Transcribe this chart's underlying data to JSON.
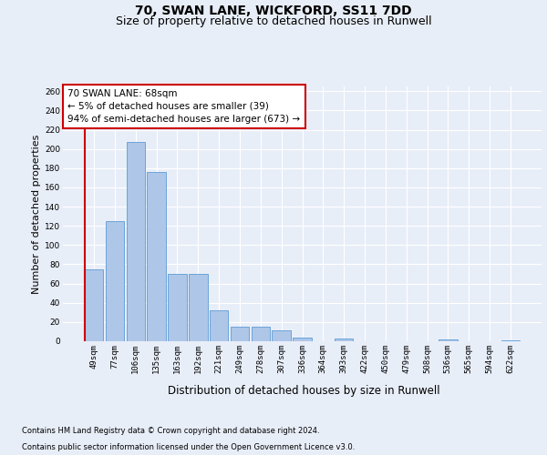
{
  "title1": "70, SWAN LANE, WICKFORD, SS11 7DD",
  "title2": "Size of property relative to detached houses in Runwell",
  "xlabel": "Distribution of detached houses by size in Runwell",
  "ylabel": "Number of detached properties",
  "categories": [
    "49sqm",
    "77sqm",
    "106sqm",
    "135sqm",
    "163sqm",
    "192sqm",
    "221sqm",
    "249sqm",
    "278sqm",
    "307sqm",
    "336sqm",
    "364sqm",
    "393sqm",
    "422sqm",
    "450sqm",
    "479sqm",
    "508sqm",
    "536sqm",
    "565sqm",
    "594sqm",
    "622sqm"
  ],
  "values": [
    75,
    125,
    207,
    176,
    70,
    70,
    32,
    15,
    15,
    11,
    4,
    0,
    3,
    0,
    0,
    0,
    0,
    2,
    0,
    0,
    1
  ],
  "bar_color": "#aec6e8",
  "bar_edge_color": "#5b9bd5",
  "vline_color": "#cc0000",
  "annotation_line1": "70 SWAN LANE: 68sqm",
  "annotation_line2": "← 5% of detached houses are smaller (39)",
  "annotation_line3": "94% of semi-detached houses are larger (673) →",
  "ylim": [
    0,
    265
  ],
  "yticks": [
    0,
    20,
    40,
    60,
    80,
    100,
    120,
    140,
    160,
    180,
    200,
    220,
    240,
    260
  ],
  "footnote1": "Contains HM Land Registry data © Crown copyright and database right 2024.",
  "footnote2": "Contains public sector information licensed under the Open Government Licence v3.0.",
  "bg_color": "#e8eef8",
  "grid_color": "#ffffff",
  "title1_fontsize": 10,
  "title2_fontsize": 9,
  "xlabel_fontsize": 8.5,
  "ylabel_fontsize": 8,
  "tick_fontsize": 6.5,
  "annot_fontsize": 7.5,
  "footnote_fontsize": 6
}
